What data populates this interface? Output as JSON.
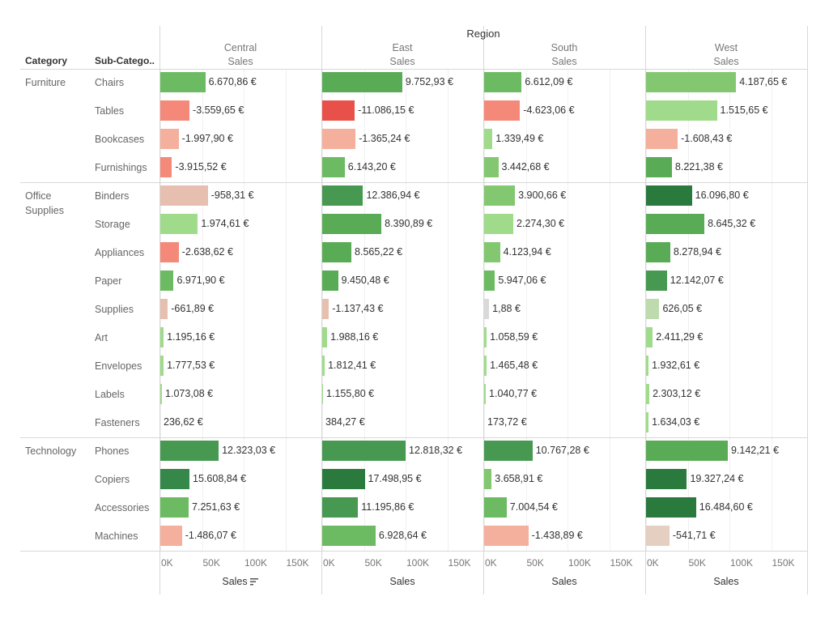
{
  "chart_data": {
    "type": "bar",
    "title": "",
    "column_header": "Region",
    "row_headers": [
      "Category",
      "Sub-Catego.."
    ],
    "measure": "Sales",
    "regions": [
      "Central",
      "East",
      "South",
      "West"
    ],
    "region_subtitle": "Sales",
    "categories": [
      {
        "name": "Furniture",
        "subcategories": [
          "Chairs",
          "Tables",
          "Bookcases",
          "Furnishings"
        ]
      },
      {
        "name": "Office\nSupplies",
        "subcategories": [
          "Binders",
          "Storage",
          "Appliances",
          "Paper",
          "Supplies",
          "Art",
          "Envelopes",
          "Labels",
          "Fasteners"
        ]
      },
      {
        "name": "Technology",
        "subcategories": [
          "Phones",
          "Copiers",
          "Accessories",
          "Machines"
        ]
      }
    ],
    "series": [
      {
        "region": "Central",
        "sales": [
          54000,
          35000,
          22000,
          14000,
          57000,
          45000,
          22000,
          16000,
          9000,
          4000,
          4000,
          2000,
          0.5,
          70000,
          35000,
          34000,
          26000
        ],
        "labels": [
          "6.670,86 €",
          "-3.559,65 €",
          "-1.997,90 €",
          "-3.915,52 €",
          "-958,31 €",
          "1.974,61 €",
          "-2.638,62 €",
          "6.971,90 €",
          "-661,89 €",
          "1.195,16 €",
          "1.777,53 €",
          "1.073,08 €",
          "236,62 €",
          "12.323,03 €",
          "15.608,84 €",
          "7.251,63 €",
          "-1.486,07 €"
        ],
        "profit": [
          6670.86,
          -3559.65,
          -1997.9,
          -3915.52,
          -958.31,
          1974.61,
          -2638.62,
          6971.9,
          -661.89,
          1195.16,
          1777.53,
          1073.08,
          236.62,
          12323.03,
          15608.84,
          7251.63,
          -1486.07
        ]
      },
      {
        "region": "East",
        "sales": [
          96000,
          39000,
          40000,
          27000,
          49000,
          71000,
          35000,
          19000,
          8000,
          6000,
          3000,
          1000,
          0.5,
          100000,
          51000,
          43000,
          64000
        ],
        "labels": [
          "9.752,93 €",
          "-11.086,15 €",
          "-1.365,24 €",
          "6.143,20 €",
          "12.386,94 €",
          "8.390,89 €",
          "8.565,22 €",
          "9.450,48 €",
          "-1.137,43 €",
          "1.988,16 €",
          "1.812,41 €",
          "1.155,80 €",
          "384,27 €",
          "12.818,32 €",
          "17.498,95 €",
          "11.195,86 €",
          "6.928,64 €"
        ],
        "profit": [
          9752.93,
          -11086.15,
          -1365.24,
          6143.2,
          12386.94,
          8390.89,
          8565.22,
          9450.48,
          -1137.43,
          1988.16,
          1812.41,
          1155.8,
          384.27,
          12818.32,
          17498.95,
          11195.86,
          6928.64
        ]
      },
      {
        "region": "South",
        "sales": [
          45000,
          43000,
          10000,
          17000,
          37000,
          35000,
          19000,
          13000,
          6000,
          3000,
          3000,
          2000,
          0.5,
          58000,
          9000,
          27000,
          53000
        ],
        "labels": [
          "6.612,09 €",
          "-4.623,06 €",
          "1.339,49 €",
          "3.442,68 €",
          "3.900,66 €",
          "2.274,30 €",
          "4.123,94 €",
          "5.947,06 €",
          "1,88 €",
          "1.058,59 €",
          "1.465,48 €",
          "1.040,77 €",
          "173,72 €",
          "10.767,28 €",
          "3.658,91 €",
          "7.004,54 €",
          "-1.438,89 €"
        ],
        "profit": [
          6612.09,
          -4623.06,
          1339.49,
          3442.68,
          3900.66,
          2274.3,
          4123.94,
          5947.06,
          1.88,
          1058.59,
          1465.48,
          1040.77,
          173.72,
          10767.28,
          3658.91,
          7004.54,
          -1438.89
        ]
      },
      {
        "region": "West",
        "sales": [
          108000,
          85000,
          38000,
          31000,
          55000,
          70000,
          29000,
          25000,
          16000,
          8000,
          3000,
          4000,
          3000,
          98000,
          49000,
          60000,
          28000
        ],
        "labels": [
          "4.187,65 €",
          "1.515,65 €",
          "-1.608,43 €",
          "8.221,38 €",
          "16.096,80 €",
          "8.645,32 €",
          "8.278,94 €",
          "12.142,07 €",
          "626,05 €",
          "2.411,29 €",
          "1.932,61 €",
          "2.303,12 €",
          "1.634,03 €",
          "9.142,21 €",
          "19.327,24 €",
          "16.484,60 €",
          "-541,71 €"
        ],
        "profit": [
          4187.65,
          1515.65,
          -1608.43,
          8221.38,
          16096.8,
          8645.32,
          8278.94,
          12142.07,
          626.05,
          2411.29,
          1932.61,
          2303.12,
          1634.03,
          9142.21,
          19327.24,
          16484.6,
          -541.71
        ]
      }
    ],
    "xaxis": {
      "ticks": [
        "0K",
        "50K",
        "100K",
        "150K"
      ],
      "range": [
        0,
        170000
      ],
      "title": "Sales"
    },
    "color_by": "Profit",
    "colors": {
      "neg_strong": "#e8504a",
      "neg_mid": "#f4897a",
      "neg_light": "#f4b09d",
      "neutral": "#d9d9d9",
      "pos_light": "#9fdb8b",
      "pos_mid": "#6cbb62",
      "pos_strong": "#2a7a3e"
    },
    "grid": true
  }
}
